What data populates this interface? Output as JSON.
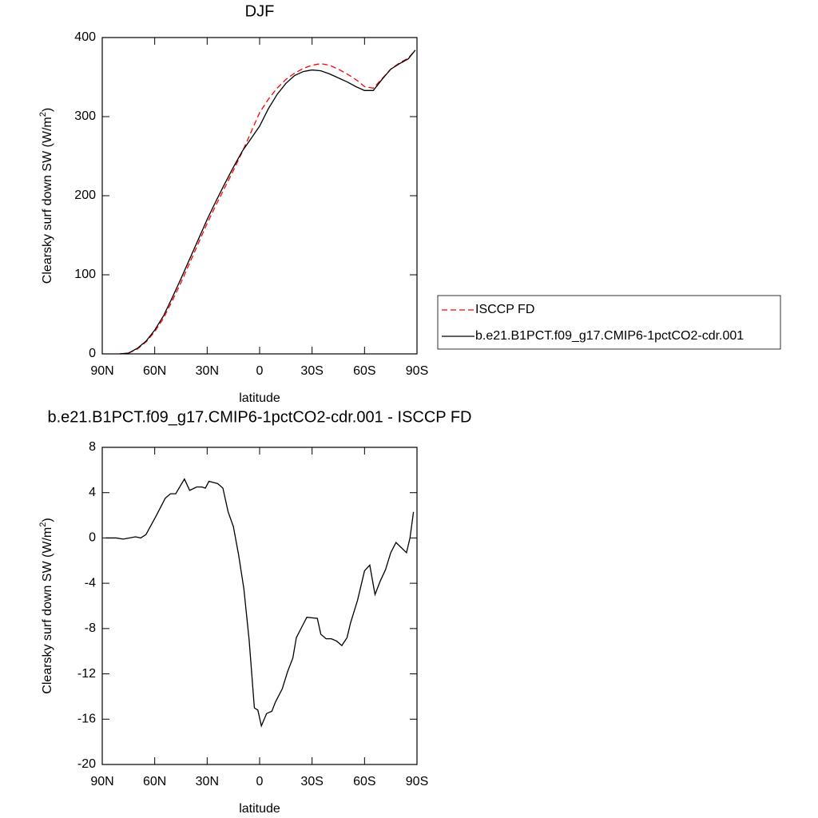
{
  "chart_data": [
    {
      "type": "line",
      "title": "DJF",
      "xlabel": "latitude",
      "ylabel": {
        "main": "Clearsky surf down SW (W/m",
        "sup": "2",
        "end": ")"
      },
      "x": [
        80,
        75,
        70,
        65,
        60,
        55,
        50,
        45,
        40,
        35,
        30,
        25,
        20,
        15,
        10,
        5,
        0,
        -5,
        -10,
        -15,
        -20,
        -25,
        -30,
        -35,
        -40,
        -45,
        -50,
        -55,
        -60,
        -65,
        -70,
        -75,
        -80,
        -85,
        -89
      ],
      "series": [
        {
          "name": "ISCCP FD",
          "color": "#ff0000",
          "style": "dashed",
          "values": [
            0,
            1,
            6,
            15,
            28,
            45,
            67,
            90,
            115,
            140,
            165,
            188,
            210,
            232,
            255,
            280,
            305,
            322,
            336,
            347,
            355,
            361,
            365,
            367,
            365,
            360,
            354,
            347,
            338,
            336,
            348,
            360,
            368,
            374,
            384
          ]
        },
        {
          "name": "b.e21.B1PCT.f09_g17.CMIP6-1pctCO2-cdr.001",
          "color": "#000000",
          "style": "solid",
          "values": [
            0,
            1,
            7,
            16,
            30,
            48,
            71,
            95,
            120,
            145,
            170,
            193,
            215,
            236,
            256,
            272,
            288,
            310,
            328,
            342,
            352,
            357,
            359,
            358,
            354,
            349,
            344,
            338,
            333,
            333,
            347,
            360,
            367,
            373,
            384
          ]
        }
      ],
      "xlim": [
        90,
        -90
      ],
      "xticks": [
        {
          "value": 90,
          "label": "90N"
        },
        {
          "value": 60,
          "label": "60N"
        },
        {
          "value": 30,
          "label": "30N"
        },
        0,
        {
          "value": -30,
          "label": "30S"
        },
        {
          "value": -60,
          "label": "60S"
        },
        {
          "value": -90,
          "label": "90S"
        }
      ],
      "ylim": [
        0,
        400
      ],
      "yticks": [
        0,
        100,
        200,
        300,
        400
      ],
      "legend": "right"
    },
    {
      "type": "line",
      "title": "b.e21.B1PCT.f09_g17.CMIP6-1pctCO2-cdr.001 - ISCCP FD",
      "xlabel": "latitude",
      "ylabel": {
        "main": "Clearsky surf down SW (W/m",
        "sup": "2",
        "end": ")"
      },
      "x": [
        88,
        82,
        78,
        71,
        68,
        65,
        59,
        54,
        51,
        48,
        43,
        40,
        36,
        33,
        31,
        29,
        24,
        21,
        18,
        15,
        12,
        9,
        6,
        3,
        1,
        -1,
        -4,
        -7,
        -9,
        -13,
        -16,
        -19,
        -21,
        -27,
        -33,
        -35,
        -38,
        -41,
        -44,
        -47,
        -50,
        -52,
        -56,
        -60,
        -63,
        -66,
        -69,
        -72,
        -75,
        -78,
        -84,
        -86,
        -88
      ],
      "values": [
        0,
        0,
        -0.1,
        0.1,
        0,
        0.3,
        2,
        3.5,
        3.9,
        3.9,
        5.2,
        4.2,
        4.5,
        4.5,
        4.4,
        5,
        4.8,
        4.4,
        2.3,
        1,
        -1.5,
        -4.5,
        -9,
        -15,
        -15.2,
        -16.6,
        -15.5,
        -15.3,
        -14.5,
        -13.3,
        -11.8,
        -10.6,
        -8.8,
        -7,
        -7.1,
        -8.5,
        -8.9,
        -8.9,
        -9.1,
        -9.5,
        -8.8,
        -7.5,
        -5.5,
        -2.9,
        -2.4,
        -5,
        -3.8,
        -2.8,
        -1.3,
        -0.4,
        -1.3,
        0,
        2.3
      ],
      "color": "#000000",
      "xlim": [
        90,
        -90
      ],
      "xticks": [
        {
          "value": 90,
          "label": "90N"
        },
        {
          "value": 60,
          "label": "60N"
        },
        {
          "value": 30,
          "label": "30N"
        },
        0,
        {
          "value": -30,
          "label": "30S"
        },
        {
          "value": -60,
          "label": "60S"
        },
        {
          "value": -90,
          "label": "90S"
        }
      ],
      "ylim": [
        -20,
        8
      ],
      "yticks": [
        -20,
        -16,
        -12,
        -8,
        -4,
        0,
        4,
        8
      ]
    }
  ]
}
